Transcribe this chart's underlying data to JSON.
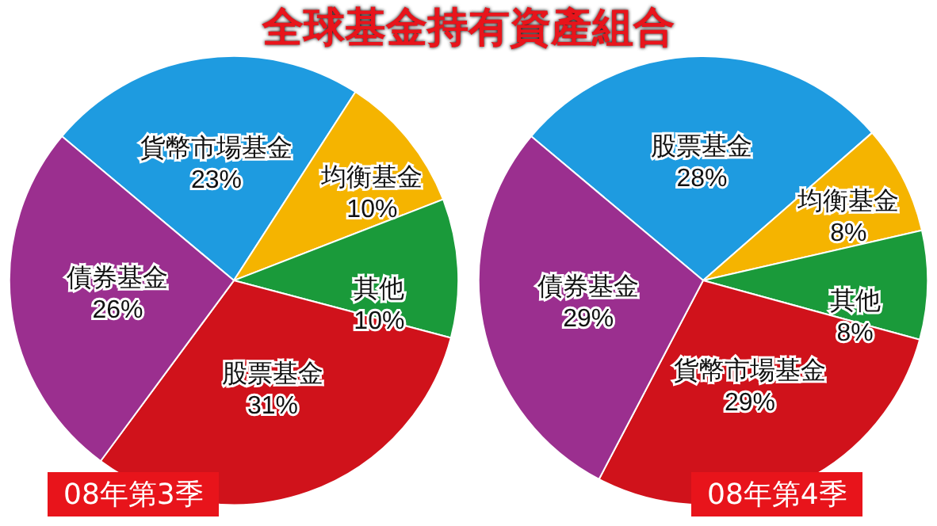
{
  "chart_data": [
    {
      "type": "pie",
      "title": "全球基金持有資產組合",
      "subtitle": "08年第3季",
      "categories": [
        "貨幣市場基金",
        "均衡基金",
        "其他",
        "股票基金",
        "債券基金"
      ],
      "values": [
        23,
        10,
        10,
        31,
        26
      ],
      "value_labels": [
        "23%",
        "10%",
        "10%",
        "31%",
        "26%"
      ],
      "colors": [
        "#1e9be0",
        "#f5b400",
        "#1a9a3a",
        "#d0121b",
        "#9b2f8f"
      ]
    },
    {
      "type": "pie",
      "subtitle": "08年第4季",
      "categories": [
        "股票基金",
        "均衡基金",
        "其他",
        "貨幣市場基金",
        "債券基金"
      ],
      "values": [
        28,
        8,
        8,
        29,
        29
      ],
      "value_labels": [
        "28%",
        "8%",
        "8%",
        "29%",
        "29%"
      ],
      "colors": [
        "#1e9be0",
        "#f5b400",
        "#1a9a3a",
        "#d0121b",
        "#9b2f8f"
      ]
    }
  ]
}
